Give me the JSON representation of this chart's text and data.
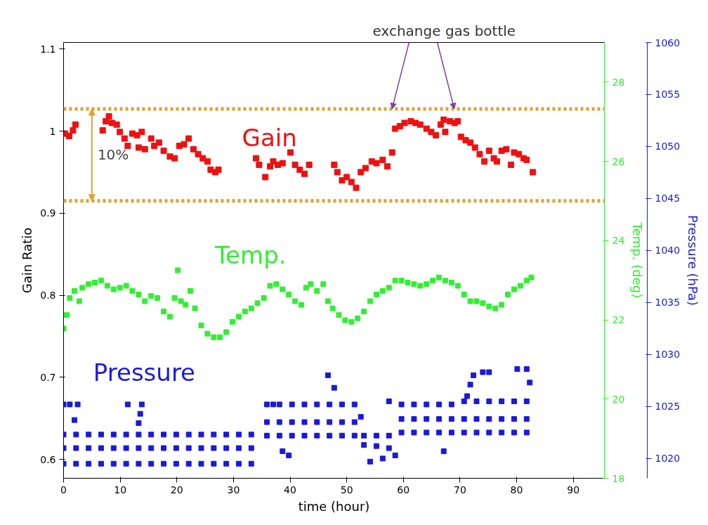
{
  "chart_data": {
    "type": "scatter",
    "xlabel": "time (hour)",
    "ylabel": "Gain Ratio",
    "y2label": "Temp. (deg)",
    "y3label": "Pressure (hPa)",
    "xlim": [
      0,
      95.5
    ],
    "xticks": [
      0,
      10,
      20,
      30,
      40,
      50,
      60,
      70,
      80,
      90
    ],
    "ylim": [
      0.577,
      1.108
    ],
    "yticks": [
      0.6,
      0.7,
      0.8,
      0.9,
      1,
      1.1
    ],
    "y2lim": [
      18,
      29
    ],
    "y2ticks": [
      18,
      20,
      22,
      24,
      26,
      28
    ],
    "y3lim": [
      1018.1,
      1060
    ],
    "y3ticks": [
      1020,
      1025,
      1030,
      1035,
      1040,
      1045,
      1050,
      1055,
      1060
    ],
    "marker": "square",
    "grid": false,
    "series": [
      {
        "name": "Gain",
        "color": "#ee1111",
        "x": [
          0.28,
          0.99,
          1.66,
          2.1,
          6.91,
          7.46,
          8.01,
          8.56,
          9.39,
          9.94,
          10.77,
          11.33,
          12.15,
          12.98,
          13.81,
          13.26,
          14.36,
          15.47,
          16.02,
          16.85,
          17.68,
          18.78,
          19.61,
          20.44,
          21.27,
          22.1,
          22.93,
          23.76,
          24.59,
          25.41,
          25.97,
          26.8,
          27.35,
          33.98,
          34.53,
          35.63,
          36.46,
          37.02,
          37.85,
          38.67,
          40.06,
          40.88,
          41.71,
          42.54,
          43.37,
          47.79,
          48.34,
          49.17,
          50.0,
          50.83,
          51.66,
          52.49,
          53.32,
          54.42,
          55.25,
          56.35,
          57.18,
          58.01,
          58.56,
          59.39,
          60.22,
          61.33,
          62.15,
          62.98,
          64.09,
          64.92,
          65.75,
          66.58,
          67.13,
          67.4,
          68.23,
          69.06,
          69.61,
          70.17,
          71.0,
          71.83,
          72.65,
          73.48,
          74.31,
          75.14,
          75.97,
          76.52,
          77.35,
          78.18,
          79.01,
          79.56,
          80.39,
          81.22,
          81.77,
          82.87
        ],
        "values": [
          0.997,
          0.994,
          1.001,
          1.008,
          1.001,
          1.012,
          1.018,
          1.01,
          1.008,
          0.999,
          0.991,
          0.982,
          0.997,
          0.995,
          0.999,
          0.98,
          0.978,
          0.991,
          0.982,
          0.986,
          0.976,
          0.969,
          0.967,
          0.982,
          0.984,
          0.991,
          0.978,
          0.972,
          0.967,
          0.963,
          0.953,
          0.95,
          0.953,
          0.967,
          0.959,
          0.944,
          0.957,
          0.963,
          0.959,
          0.961,
          0.974,
          0.959,
          0.953,
          0.948,
          0.959,
          0.959,
          0.95,
          0.94,
          0.944,
          0.938,
          0.931,
          0.95,
          0.955,
          0.963,
          0.961,
          0.965,
          0.957,
          0.974,
          1.003,
          1.006,
          1.01,
          1.012,
          1.01,
          1.008,
          1.003,
          0.999,
          0.995,
          1.008,
          1.014,
          0.999,
          1.012,
          1.01,
          1.012,
          0.993,
          0.989,
          0.986,
          0.98,
          0.972,
          0.963,
          0.976,
          0.967,
          0.963,
          0.976,
          0.978,
          0.959,
          0.974,
          0.972,
          0.967,
          0.965,
          0.95
        ]
      },
      {
        "name": "Temp.",
        "color": "#33ee33",
        "axis": "y2",
        "x": [
          0.0,
          0.55,
          1.1,
          1.93,
          2.76,
          3.31,
          4.42,
          5.52,
          6.63,
          7.73,
          8.84,
          9.94,
          11.05,
          12.15,
          13.26,
          14.36,
          15.47,
          16.57,
          17.68,
          18.78,
          19.61,
          20.17,
          20.72,
          21.55,
          22.38,
          23.2,
          24.31,
          25.41,
          26.52,
          27.62,
          28.73,
          29.83,
          30.94,
          32.04,
          33.15,
          34.25,
          35.36,
          36.46,
          37.57,
          38.67,
          39.78,
          40.88,
          41.99,
          42.82,
          43.65,
          44.75,
          45.86,
          46.69,
          47.51,
          48.62,
          49.72,
          50.83,
          51.93,
          53.04,
          54.14,
          55.25,
          56.35,
          57.46,
          58.56,
          59.67,
          60.77,
          61.88,
          62.98,
          64.09,
          65.19,
          66.3,
          67.4,
          68.51,
          69.61,
          70.72,
          71.82,
          72.93,
          74.03,
          75.14,
          76.24,
          77.35,
          78.45,
          79.56,
          80.66,
          81.77,
          82.6
        ],
        "values": [
          21.78,
          22.12,
          22.55,
          22.73,
          22.47,
          22.81,
          22.9,
          22.94,
          22.99,
          22.86,
          22.77,
          22.81,
          22.86,
          22.73,
          22.64,
          22.47,
          22.6,
          22.55,
          22.21,
          22.08,
          22.55,
          23.25,
          22.47,
          22.38,
          22.73,
          22.29,
          21.86,
          21.65,
          21.56,
          21.56,
          21.69,
          21.95,
          22.08,
          22.21,
          22.29,
          22.42,
          22.55,
          22.86,
          22.9,
          22.77,
          22.64,
          22.47,
          22.38,
          22.81,
          22.9,
          22.73,
          22.9,
          22.47,
          22.29,
          22.12,
          21.99,
          21.95,
          22.04,
          22.21,
          22.47,
          22.64,
          22.73,
          22.81,
          22.99,
          22.99,
          22.94,
          22.9,
          22.86,
          22.9,
          22.99,
          23.07,
          22.99,
          22.94,
          22.86,
          22.64,
          22.47,
          22.47,
          22.42,
          22.34,
          22.29,
          22.38,
          22.64,
          22.77,
          22.86,
          22.99,
          23.07
        ]
      },
      {
        "name": "Pressure",
        "color": "#1a1adc",
        "axis": "y3",
        "x": [
          0.0,
          0.0,
          0.0,
          2.21,
          2.21,
          2.21,
          4.42,
          4.42,
          4.42,
          6.63,
          6.63,
          6.63,
          8.84,
          8.84,
          8.84,
          11.05,
          11.05,
          11.05,
          13.26,
          13.26,
          13.26,
          15.47,
          15.47,
          15.47,
          17.68,
          17.68,
          17.68,
          19.89,
          19.89,
          19.89,
          22.1,
          22.1,
          22.1,
          24.31,
          24.31,
          24.31,
          26.52,
          26.52,
          26.52,
          28.73,
          28.73,
          28.73,
          30.94,
          30.94,
          30.94,
          33.15,
          33.15,
          33.15,
          0.0,
          1.1,
          2.49,
          1.93,
          11.33,
          13.81,
          13.54,
          13.26,
          35.91,
          35.91,
          35.91,
          38.12,
          38.12,
          38.12,
          40.33,
          40.33,
          40.33,
          42.54,
          42.54,
          42.54,
          44.75,
          44.75,
          44.75,
          46.96,
          46.96,
          46.96,
          49.17,
          49.17,
          49.17,
          51.38,
          51.38,
          51.38,
          37.02,
          38.67,
          39.78,
          46.69,
          47.79,
          52.49,
          53.04,
          54.14,
          55.25,
          56.35,
          57.46,
          58.56,
          53.04,
          55.25,
          57.46,
          59.67,
          59.67,
          59.67,
          61.88,
          61.88,
          61.88,
          64.09,
          64.09,
          64.09,
          66.3,
          66.3,
          66.3,
          68.51,
          68.51,
          68.51,
          70.72,
          70.72,
          70.72,
          72.93,
          72.93,
          72.93,
          75.14,
          75.14,
          75.14,
          77.35,
          77.35,
          77.35,
          79.56,
          79.56,
          79.56,
          81.77,
          81.77,
          81.77,
          57.46,
          67.13,
          71.27,
          72.38,
          74.03,
          75.14,
          80.11,
          81.77,
          82.32,
          71.82
        ],
        "values": [
          1022.3,
          1021.0,
          1019.5,
          1022.3,
          1021.0,
          1019.5,
          1022.3,
          1021.0,
          1019.5,
          1022.3,
          1021.0,
          1019.5,
          1022.3,
          1021.0,
          1019.5,
          1022.3,
          1021.0,
          1019.5,
          1022.3,
          1021.0,
          1019.5,
          1022.3,
          1021.0,
          1019.5,
          1022.3,
          1021.0,
          1019.5,
          1022.3,
          1021.0,
          1019.5,
          1022.3,
          1021.0,
          1019.5,
          1022.3,
          1021.0,
          1019.5,
          1022.3,
          1021.0,
          1019.5,
          1022.3,
          1021.0,
          1019.5,
          1022.3,
          1021.0,
          1019.5,
          1022.3,
          1021.0,
          1019.5,
          1025.2,
          1025.2,
          1025.2,
          1023.7,
          1025.2,
          1025.2,
          1024.3,
          1023.4,
          1025.2,
          1023.5,
          1022.2,
          1025.2,
          1023.5,
          1022.2,
          1025.2,
          1023.5,
          1022.2,
          1025.2,
          1023.5,
          1022.2,
          1025.2,
          1023.5,
          1022.2,
          1025.2,
          1023.5,
          1022.2,
          1025.2,
          1023.5,
          1022.2,
          1025.2,
          1023.5,
          1022.2,
          1025.2,
          1020.7,
          1020.3,
          1028.0,
          1026.8,
          1024.0,
          1021.3,
          1019.7,
          1021.2,
          1020.0,
          1021.0,
          1020.3,
          1022.2,
          1022.2,
          1022.2,
          1025.2,
          1023.8,
          1022.5,
          1025.2,
          1023.8,
          1022.5,
          1025.2,
          1023.8,
          1022.5,
          1025.2,
          1023.8,
          1022.5,
          1025.2,
          1023.8,
          1022.5,
          1025.5,
          1023.8,
          1022.5,
          1025.5,
          1023.8,
          1022.5,
          1025.5,
          1023.8,
          1022.5,
          1025.5,
          1023.8,
          1022.5,
          1025.5,
          1023.8,
          1022.5,
          1025.5,
          1023.8,
          1022.5,
          1025.5,
          1020.7,
          1026.0,
          1028.0,
          1028.3,
          1028.3,
          1028.6,
          1028.6,
          1027.3,
          1027.1
        ]
      }
    ],
    "ref_lines": [
      {
        "axis": "y",
        "value": 1.027,
        "color": "#e0a030",
        "line_style": "dotted"
      },
      {
        "axis": "y",
        "value": 0.915,
        "color": "#e0a030",
        "line_style": "dotted"
      }
    ],
    "annotations": [
      "10%",
      {
        "text": "exchange gas bottle",
        "x": 58,
        "y": 1.027
      }
    ]
  }
}
